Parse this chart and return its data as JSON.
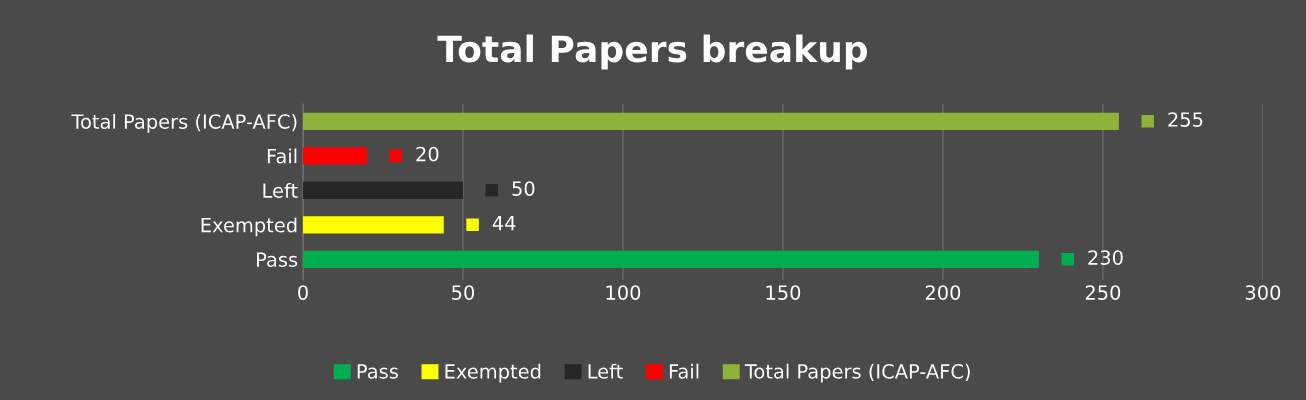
{
  "chart_data": {
    "type": "bar",
    "orientation": "horizontal",
    "title": "Total Papers breakup",
    "categories": [
      "Total Papers (ICAP-AFC)",
      "Fail",
      "Left",
      "Exempted",
      "Pass"
    ],
    "series": [
      {
        "name": "Pass",
        "color": "#00b050",
        "values": [
          null,
          null,
          null,
          null,
          230
        ]
      },
      {
        "name": "Exempted",
        "color": "#ffff00",
        "values": [
          null,
          null,
          null,
          44,
          null
        ]
      },
      {
        "name": "Left",
        "color": "#262626",
        "values": [
          null,
          null,
          50,
          null,
          null
        ]
      },
      {
        "name": "Fail",
        "color": "#ff0000",
        "values": [
          null,
          20,
          null,
          null,
          null
        ]
      },
      {
        "name": "Total Papers (ICAP-AFC)",
        "color": "#8db33a",
        "values": [
          255,
          null,
          null,
          null,
          null
        ]
      }
    ],
    "xlim": [
      0,
      300
    ],
    "xticks": [
      0,
      50,
      100,
      150,
      200,
      250,
      300
    ],
    "grid": "x",
    "legend": "bottom",
    "data_labels": true
  }
}
